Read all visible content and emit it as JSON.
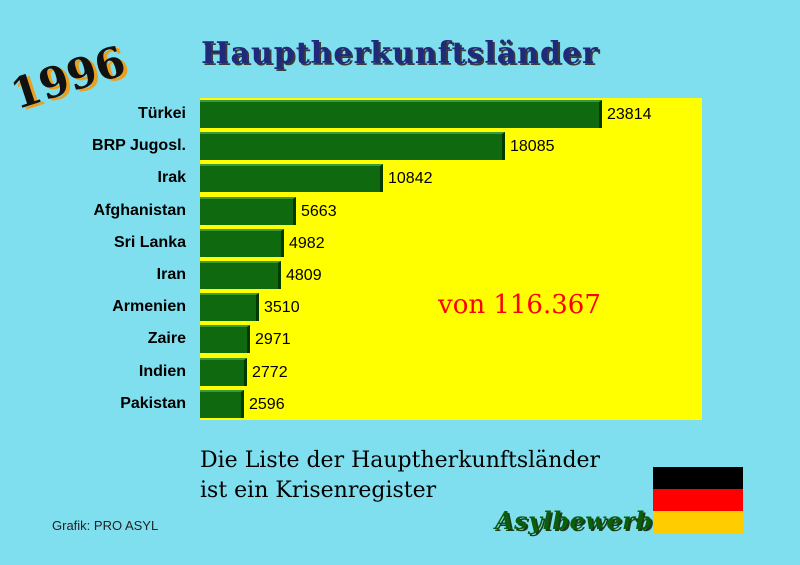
{
  "title": "Hauptherkunftsländer",
  "year": "1996",
  "total_label": "von 116.367",
  "caption": {
    "line1": "Die Liste der Hauptherkunftsländer",
    "line2": "ist ein Krisenregister"
  },
  "source": "Grafik: PRO ASYL",
  "brand": "Asylbewerber",
  "flag_colors": [
    "#000000",
    "#ff0000",
    "#ffcc00"
  ],
  "colors": {
    "background": "#7fdfef",
    "plot": "#ffff00",
    "bar": "#0f6a0f",
    "total": "#ff0000"
  },
  "chart_data": {
    "type": "bar",
    "orientation": "horizontal",
    "title": "Hauptherkunftsländer",
    "categories": [
      "Türkei",
      "BRP Jugosl.",
      "Irak",
      "Afghanistan",
      "Sri Lanka",
      "Iran",
      "Armenien",
      "Zaire",
      "Indien",
      "Pakistan"
    ],
    "values": [
      23814,
      18085,
      10842,
      5663,
      4982,
      4809,
      3510,
      2971,
      2772,
      2596
    ],
    "xlim": [
      0,
      30000
    ],
    "grid": false,
    "legend": "none",
    "annotations": [
      "von 116.367"
    ]
  }
}
